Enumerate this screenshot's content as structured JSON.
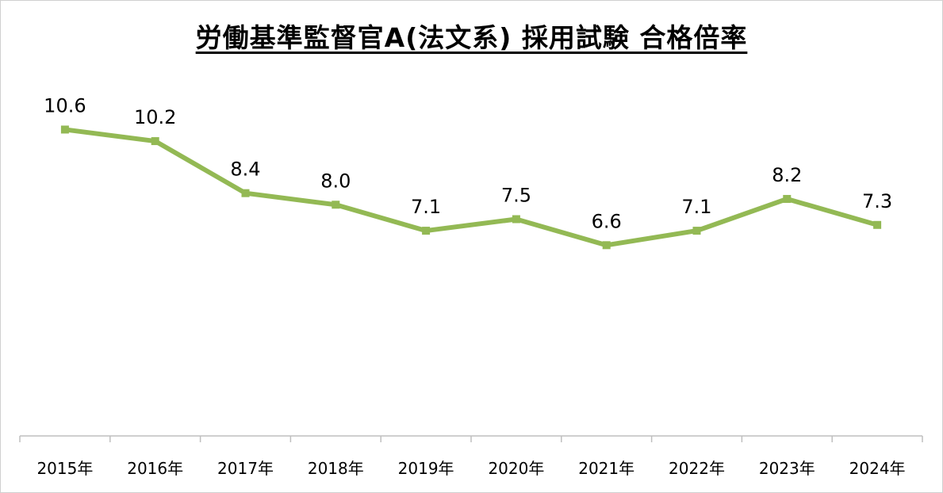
{
  "chart_data": {
    "type": "line",
    "title": "労働基準監督官A(法文系) 採用試験 合格倍率",
    "categories": [
      "2015年",
      "2016年",
      "2017年",
      "2018年",
      "2019年",
      "2020年",
      "2021年",
      "2022年",
      "2023年",
      "2024年"
    ],
    "series": [
      {
        "values": [
          10.6,
          10.2,
          8.4,
          8.0,
          7.1,
          7.5,
          6.6,
          7.1,
          8.2,
          7.3
        ]
      }
    ],
    "ylim": [
      0,
      15
    ],
    "grid": false,
    "legend": "none",
    "data_labels": true,
    "line_color": "#93b954"
  }
}
